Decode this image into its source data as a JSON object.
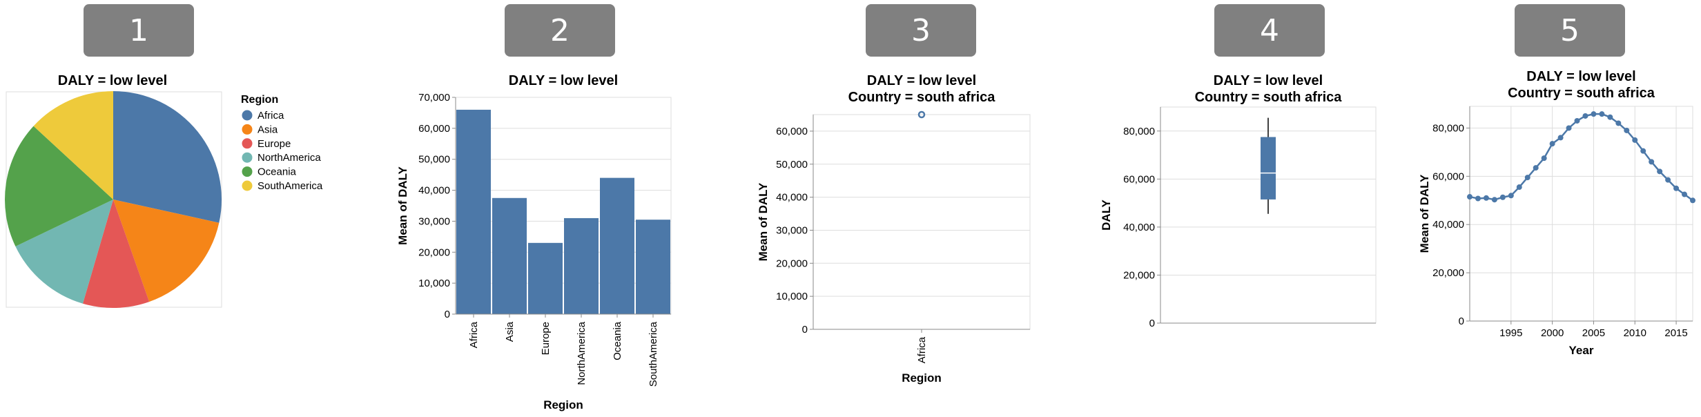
{
  "badges": [
    "1",
    "2",
    "3",
    "4",
    "5"
  ],
  "chart_data": [
    {
      "type": "pie",
      "title": "DALY = low level",
      "legend_title": "Region",
      "legend_position": "right",
      "categories": [
        "Africa",
        "Asia",
        "Europe",
        "NorthAmerica",
        "Oceania",
        "SouthAmerica"
      ],
      "values": [
        66000,
        37500,
        23000,
        31000,
        44000,
        30500
      ],
      "colors": [
        "#4c78a8",
        "#f58518",
        "#e45756",
        "#72b7b2",
        "#54a24b",
        "#eeca3b"
      ]
    },
    {
      "type": "bar",
      "title": "DALY = low level",
      "xlabel": "Region",
      "ylabel": "Mean of DALY",
      "categories": [
        "Africa",
        "Asia",
        "Europe",
        "NorthAmerica",
        "Oceania",
        "SouthAmerica"
      ],
      "values": [
        66000,
        37500,
        23000,
        31000,
        44000,
        30500
      ],
      "ylim": [
        0,
        70000
      ],
      "yticks": [
        0,
        10000,
        20000,
        30000,
        40000,
        50000,
        60000,
        70000
      ],
      "ytick_labels": [
        "0",
        "10,000",
        "20,000",
        "30,000",
        "40,000",
        "50,000",
        "60,000",
        "70,000"
      ],
      "color": "#4c78a8",
      "grid": true
    },
    {
      "type": "scatter",
      "title": [
        "DALY = low level",
        "Country = south africa"
      ],
      "xlabel": "Region",
      "ylabel": "Mean of DALY",
      "categories": [
        "Africa"
      ],
      "values": [
        65000
      ],
      "ylim": [
        0,
        65000
      ],
      "yticks": [
        0,
        10000,
        20000,
        30000,
        40000,
        50000,
        60000
      ],
      "ytick_labels": [
        "0",
        "10,000",
        "20,000",
        "30,000",
        "40,000",
        "50,000",
        "60,000"
      ],
      "color": "#4c78a8",
      "grid": true
    },
    {
      "type": "box",
      "title": [
        "DALY = low level",
        "Country = south africa"
      ],
      "xlabel": "",
      "ylabel": "DALY",
      "box": {
        "min": 45500,
        "q1": 51500,
        "median": 62500,
        "q3": 77500,
        "max": 85500
      },
      "ylim": [
        0,
        90000
      ],
      "yticks": [
        0,
        20000,
        40000,
        60000,
        80000
      ],
      "ytick_labels": [
        "0",
        "20,000",
        "40,000",
        "60,000",
        "80,000"
      ],
      "color": "#4c78a8",
      "grid": true
    },
    {
      "type": "line",
      "title": [
        "DALY = low level",
        "Country = south africa"
      ],
      "xlabel": "Year",
      "ylabel": "Mean of DALY",
      "x": [
        1990,
        1991,
        1992,
        1993,
        1994,
        1995,
        1996,
        1997,
        1998,
        1999,
        2000,
        2001,
        2002,
        2003,
        2004,
        2005,
        2006,
        2007,
        2008,
        2009,
        2010,
        2011,
        2012,
        2013,
        2014,
        2015,
        2016,
        2017
      ],
      "y": [
        51500,
        50800,
        51000,
        50300,
        51300,
        52000,
        55500,
        59500,
        63500,
        67500,
        73500,
        76000,
        80000,
        83000,
        85000,
        85800,
        85800,
        84500,
        82000,
        79000,
        75000,
        70500,
        66000,
        62000,
        58500,
        55000,
        52500,
        50000
      ],
      "xlim": [
        1990,
        2017
      ],
      "xticks": [
        1995,
        2000,
        2005,
        2010,
        2015
      ],
      "xtick_labels": [
        "1995",
        "2000",
        "2005",
        "2010",
        "2015"
      ],
      "ylim": [
        0,
        89000
      ],
      "yticks": [
        0,
        20000,
        40000,
        60000,
        80000
      ],
      "ytick_labels": [
        "0",
        "20,000",
        "40,000",
        "60,000",
        "80,000"
      ],
      "color": "#4c78a8",
      "grid": true
    }
  ]
}
